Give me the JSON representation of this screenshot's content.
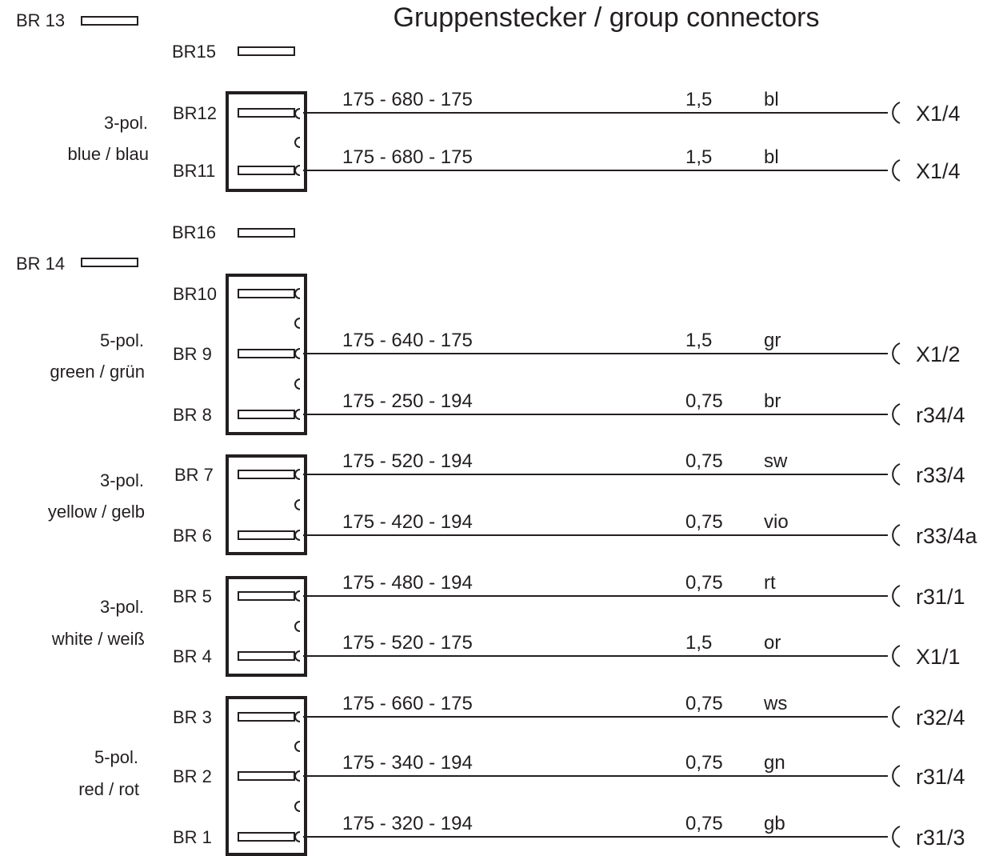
{
  "title": "Gruppenstecker / group connectors",
  "loose_bridges": [
    {
      "id": "br13",
      "label": "BR 13"
    },
    {
      "id": "br15",
      "label": "BR15"
    },
    {
      "id": "br16",
      "label": "BR16"
    },
    {
      "id": "br14",
      "label": "BR 14"
    }
  ],
  "connectors": [
    {
      "id": "blue",
      "poles": "3-pol.",
      "color_name": "blue / blau"
    },
    {
      "id": "green",
      "poles": "5-pol.",
      "color_name": "green / grün"
    },
    {
      "id": "yellow",
      "poles": "3-pol.",
      "color_name": "yellow / gelb"
    },
    {
      "id": "white",
      "poles": "3-pol.",
      "color_name": "white / weiß"
    },
    {
      "id": "red",
      "poles": "5-pol.",
      "color_name": "red / rot"
    }
  ],
  "pins": [
    {
      "connector": "blue",
      "label": "BR12",
      "wire": {
        "lengths": "175 - 680 - 175",
        "cross_section": "1,5",
        "wire_color": "bl",
        "terminal": "X1/4"
      }
    },
    {
      "connector": "blue",
      "label": "BR11",
      "wire": {
        "lengths": "175 - 680 - 175",
        "cross_section": "1,5",
        "wire_color": "bl",
        "terminal": "X1/4"
      }
    },
    {
      "connector": "green",
      "label": "BR10",
      "wire": null
    },
    {
      "connector": "green",
      "label": "BR 9",
      "wire": {
        "lengths": "175 - 640 - 175",
        "cross_section": "1,5",
        "wire_color": "gr",
        "terminal": "X1/2"
      }
    },
    {
      "connector": "green",
      "label": "BR 8",
      "wire": {
        "lengths": "175 - 250 - 194",
        "cross_section": "0,75",
        "wire_color": "br",
        "terminal": "r34/4"
      }
    },
    {
      "connector": "yellow",
      "label": "BR 7",
      "wire": {
        "lengths": "175 - 520 - 194",
        "cross_section": "0,75",
        "wire_color": "sw",
        "terminal": "r33/4"
      }
    },
    {
      "connector": "yellow",
      "label": "BR 6",
      "wire": {
        "lengths": "175 - 420 - 194",
        "cross_section": "0,75",
        "wire_color": "vio",
        "terminal": "r33/4a"
      }
    },
    {
      "connector": "white",
      "label": "BR 5",
      "wire": {
        "lengths": "175 - 480 - 194",
        "cross_section": "0,75",
        "wire_color": "rt",
        "terminal": "r31/1"
      }
    },
    {
      "connector": "white",
      "label": "BR 4",
      "wire": {
        "lengths": "175 - 520 - 175",
        "cross_section": "1,5",
        "wire_color": "or",
        "terminal": "X1/1"
      }
    },
    {
      "connector": "red",
      "label": "BR 3",
      "wire": {
        "lengths": "175 - 660 - 175",
        "cross_section": "0,75",
        "wire_color": "ws",
        "terminal": "r32/4"
      }
    },
    {
      "connector": "red",
      "label": "BR 2",
      "wire": {
        "lengths": "175 - 340 - 194",
        "cross_section": "0,75",
        "wire_color": "gn",
        "terminal": "r31/4"
      }
    },
    {
      "connector": "red",
      "label": "BR 1",
      "wire": {
        "lengths": "175 - 320 - 194",
        "cross_section": "0,75",
        "wire_color": "gb",
        "terminal": "r31/3"
      }
    }
  ]
}
